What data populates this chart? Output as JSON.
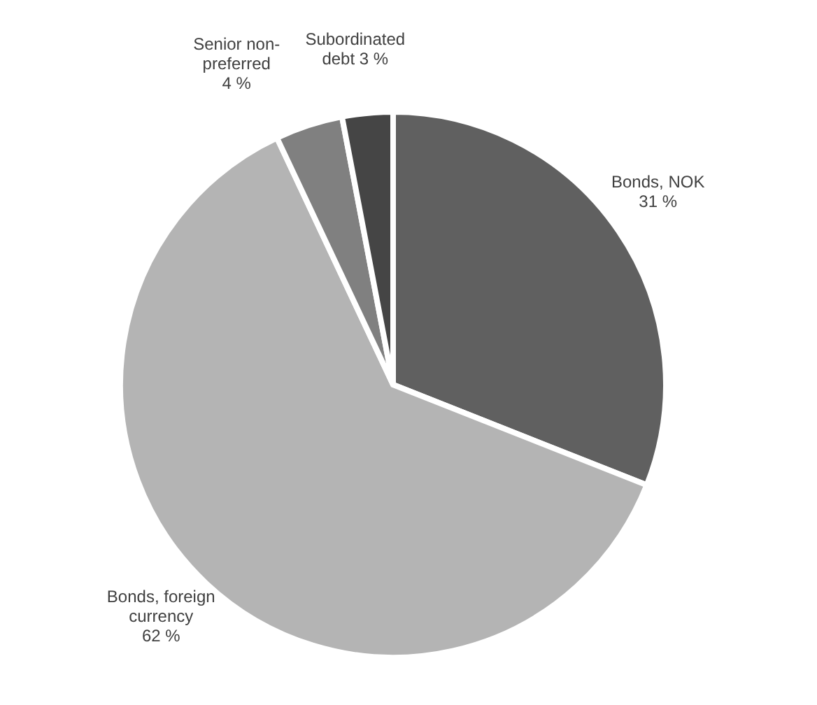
{
  "chart_data": {
    "type": "pie",
    "categories": [
      "Bonds, NOK",
      "Bonds, foreign currency",
      "Senior non-preferred",
      "Subordinated debt"
    ],
    "values": [
      31,
      62,
      4,
      3
    ],
    "value_labels": [
      "31 %",
      "62 %",
      "4 %",
      "3 %"
    ],
    "colors": [
      "#606060",
      "#b4b4b4",
      "#808080",
      "#454545"
    ]
  }
}
